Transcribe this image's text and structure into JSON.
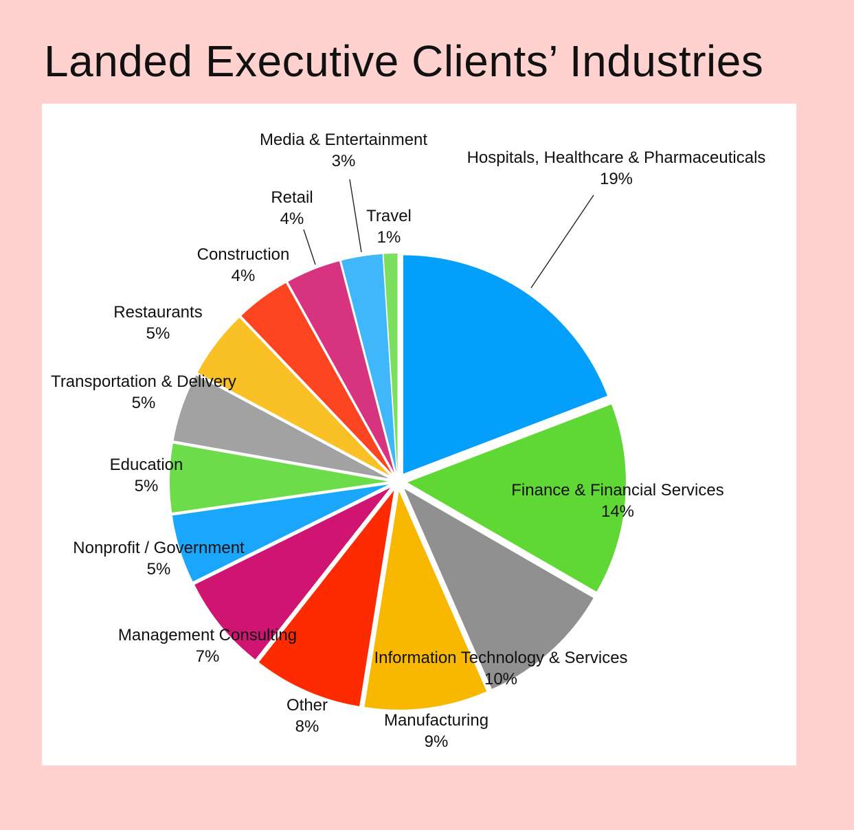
{
  "title": "Landed Executive Clients’ Industries",
  "chart_data": {
    "type": "pie",
    "title": "Landed Executive Clients’ Industries",
    "start_angle_deg": 0,
    "direction": "clockwise",
    "exploded": true,
    "slices": [
      {
        "label": "Hospitals, Healthcare & Pharmaceuticals",
        "value": 19,
        "display": "19%",
        "color": "#049ffb"
      },
      {
        "label": "Finance & Financial Services",
        "value": 14,
        "display": "14%",
        "color": "#5fd735"
      },
      {
        "label": "Information Technology & Services",
        "value": 10,
        "display": "10%",
        "color": "#909090"
      },
      {
        "label": "Manufacturing",
        "value": 9,
        "display": "9%",
        "color": "#f9b800"
      },
      {
        "label": "Other",
        "value": 8,
        "display": "8%",
        "color": "#fe2a00"
      },
      {
        "label": "Management Consulting",
        "value": 7,
        "display": "7%",
        "color": "#d01472"
      },
      {
        "label": "Nonprofit / Government",
        "value": 5,
        "display": "5%",
        "color": "#1aa6fb"
      },
      {
        "label": "Education",
        "value": 5,
        "display": "5%",
        "color": "#6ddc4a"
      },
      {
        "label": "Transportation & Delivery",
        "value": 5,
        "display": "5%",
        "color": "#a2a2a2"
      },
      {
        "label": "Restaurants",
        "value": 5,
        "display": "5%",
        "color": "#f9c126"
      },
      {
        "label": "Construction",
        "value": 4,
        "display": "4%",
        "color": "#fe4522"
      },
      {
        "label": "Retail",
        "value": 4,
        "display": "4%",
        "color": "#d8337e"
      },
      {
        "label": "Media & Entertainment",
        "value": 3,
        "display": "3%",
        "color": "#40b7fb"
      },
      {
        "label": "Travel",
        "value": 1,
        "display": "1%",
        "color": "#7cdf5f"
      }
    ]
  }
}
